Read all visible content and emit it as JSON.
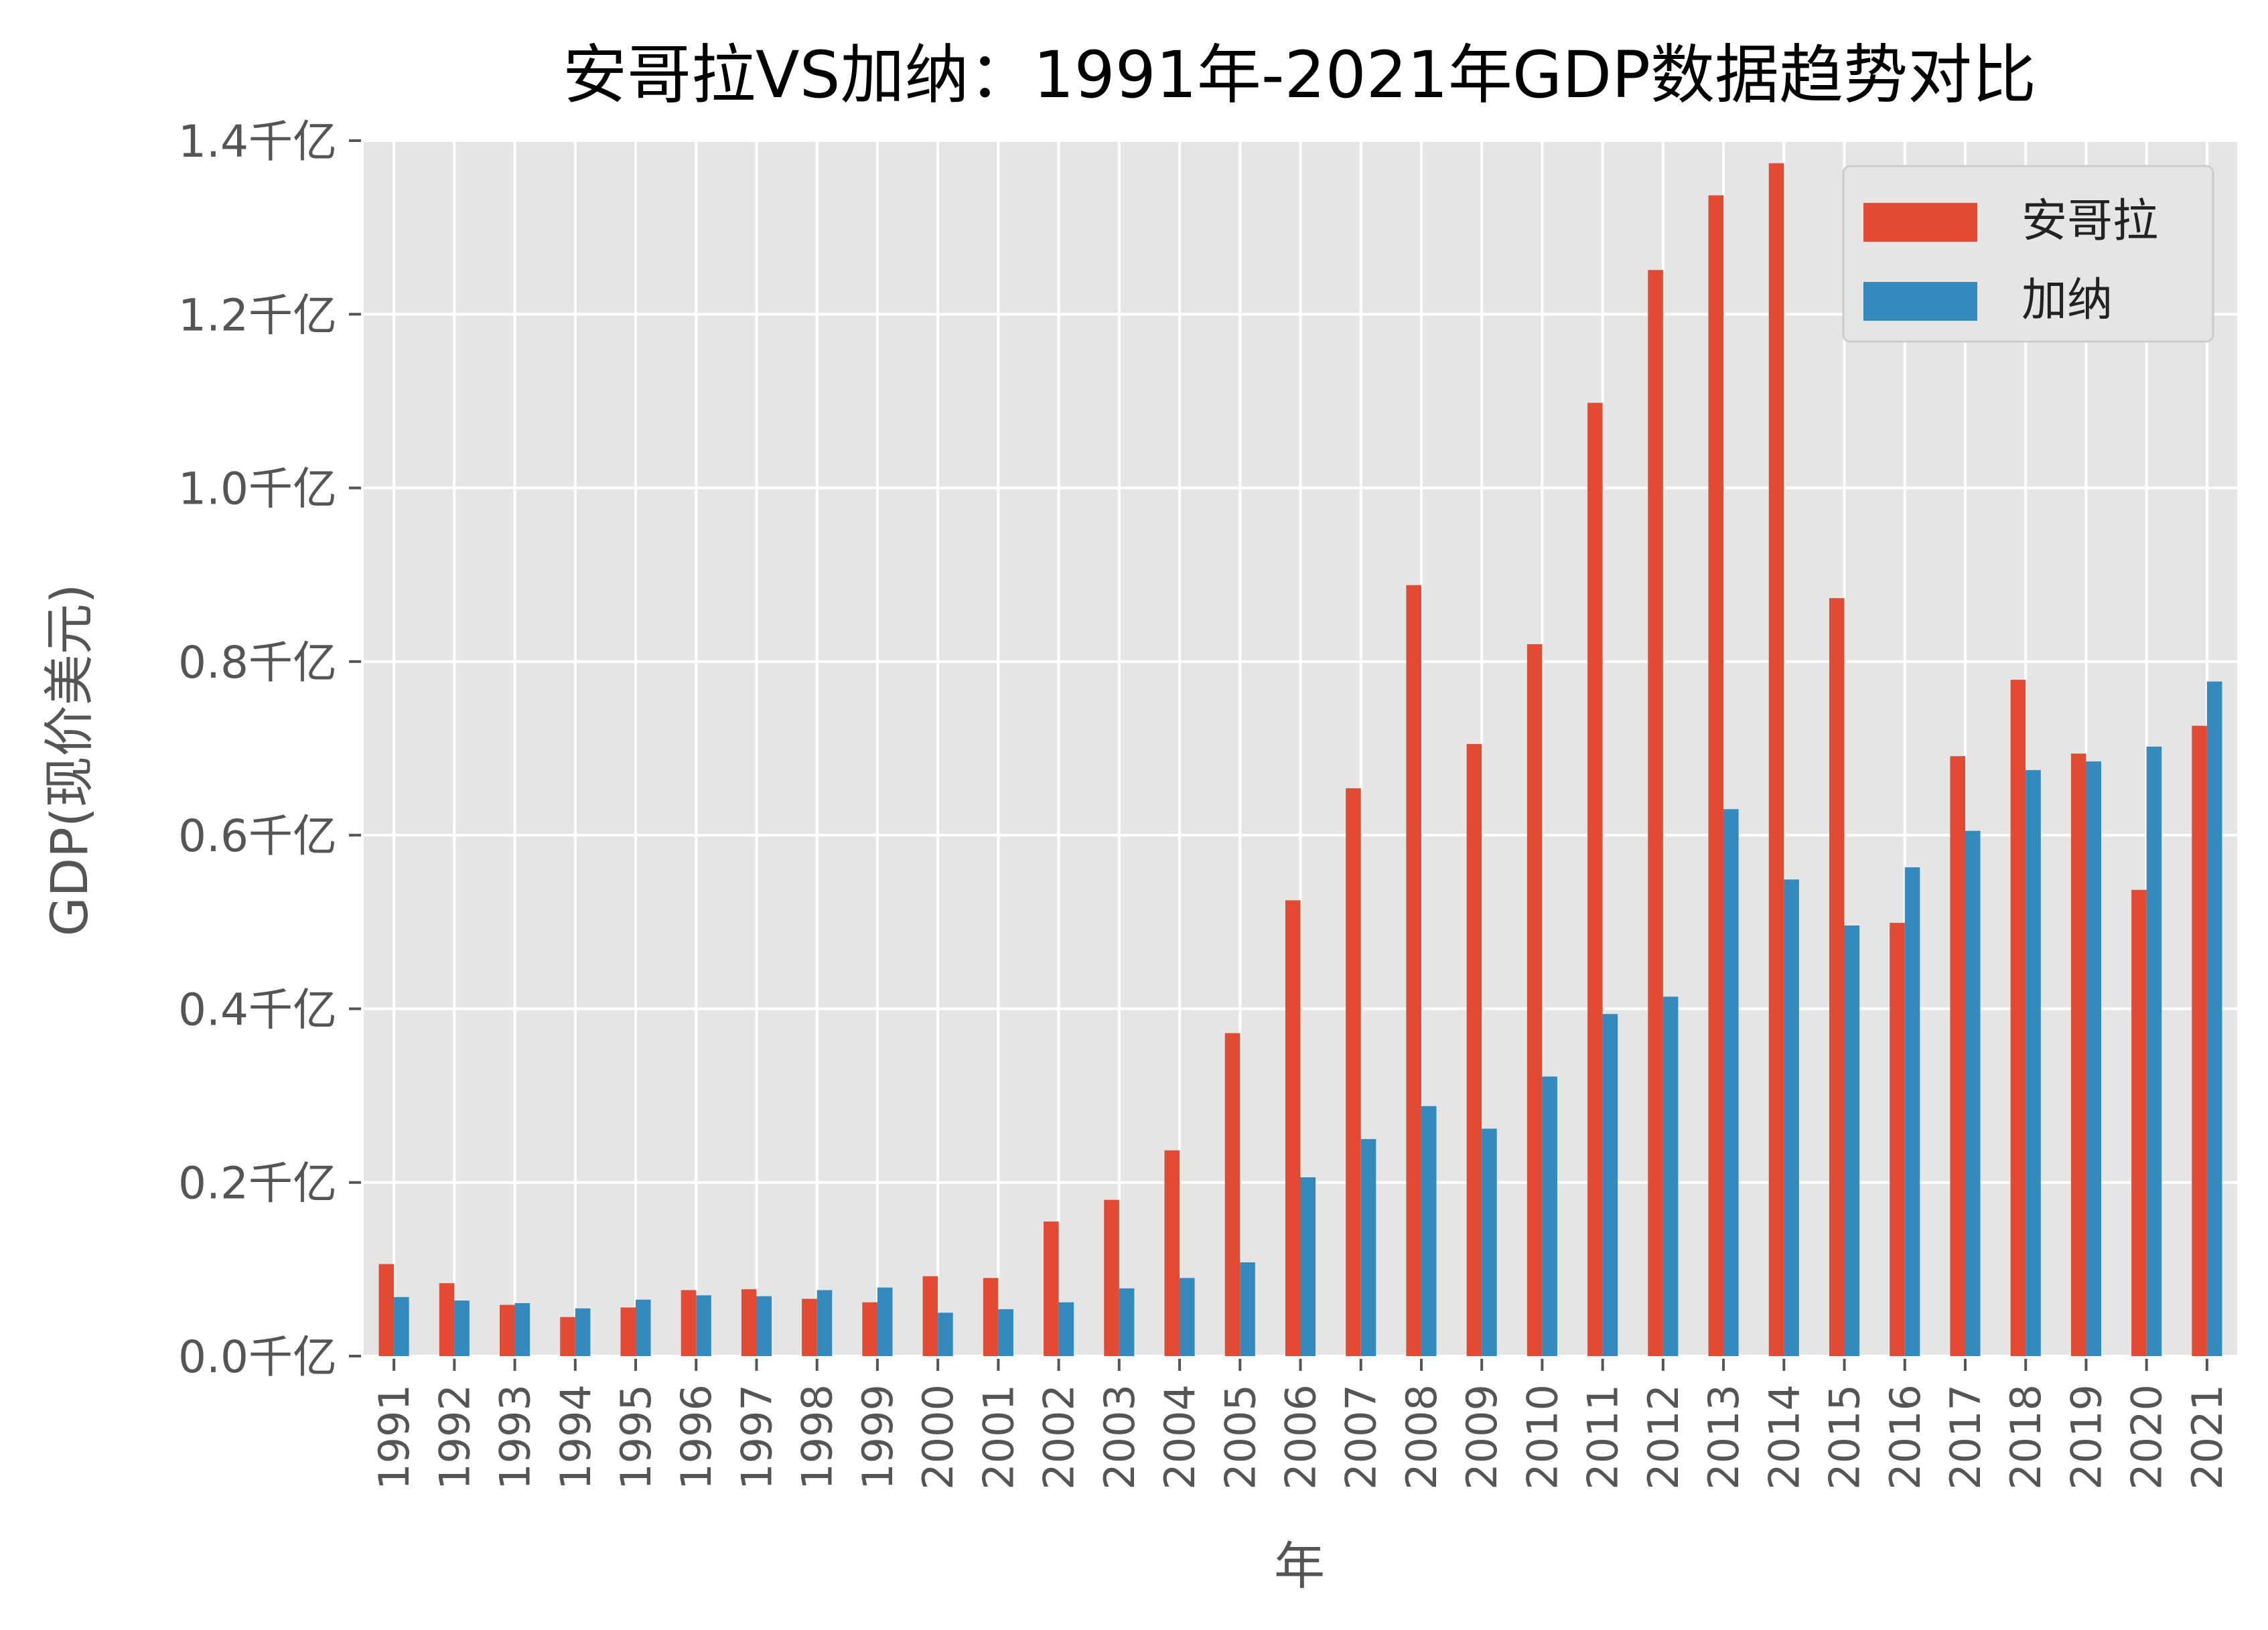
{
  "chart_data": {
    "type": "bar",
    "title": "安哥拉VS加纳：1991年-2021年GDP数据趋势对比",
    "xlabel": "年",
    "ylabel": "GDP(现价美元)",
    "ylim": [
      0,
      1.4
    ],
    "y_ticks": [
      0,
      0.2,
      0.4,
      0.6,
      0.8,
      1.0,
      1.2,
      1.4
    ],
    "y_tick_labels": [
      "0.0千亿",
      "0.2千亿",
      "0.4千亿",
      "0.6千亿",
      "0.8千亿",
      "1.0千亿",
      "1.2千亿",
      "1.4千亿"
    ],
    "grid": true,
    "legend_position": "top-right",
    "categories": [
      "1991",
      "1992",
      "1993",
      "1994",
      "1995",
      "1996",
      "1997",
      "1998",
      "1999",
      "2000",
      "2001",
      "2002",
      "2003",
      "2004",
      "2005",
      "2006",
      "2007",
      "2008",
      "2009",
      "2010",
      "2011",
      "2012",
      "2013",
      "2014",
      "2015",
      "2016",
      "2017",
      "2018",
      "2019",
      "2020",
      "2021"
    ],
    "series": [
      {
        "name": "安哥拉",
        "color": "#E24A33",
        "values": [
          0.106,
          0.084,
          0.059,
          0.045,
          0.056,
          0.076,
          0.077,
          0.066,
          0.062,
          0.092,
          0.09,
          0.155,
          0.18,
          0.237,
          0.372,
          0.525,
          0.654,
          0.888,
          0.705,
          0.82,
          1.098,
          1.251,
          1.337,
          1.374,
          0.873,
          0.499,
          0.691,
          0.779,
          0.694,
          0.537,
          0.726
        ]
      },
      {
        "name": "加纳",
        "color": "#348ABD",
        "values": [
          0.068,
          0.064,
          0.061,
          0.055,
          0.065,
          0.07,
          0.069,
          0.076,
          0.079,
          0.05,
          0.054,
          0.062,
          0.078,
          0.09,
          0.108,
          0.206,
          0.25,
          0.288,
          0.262,
          0.322,
          0.394,
          0.414,
          0.63,
          0.549,
          0.496,
          0.563,
          0.605,
          0.675,
          0.685,
          0.702,
          0.777
        ]
      }
    ]
  },
  "colors": {
    "plot_background": "#E5E5E5",
    "grid": "#FFFFFF",
    "text": "#555555",
    "title": "#000000"
  }
}
